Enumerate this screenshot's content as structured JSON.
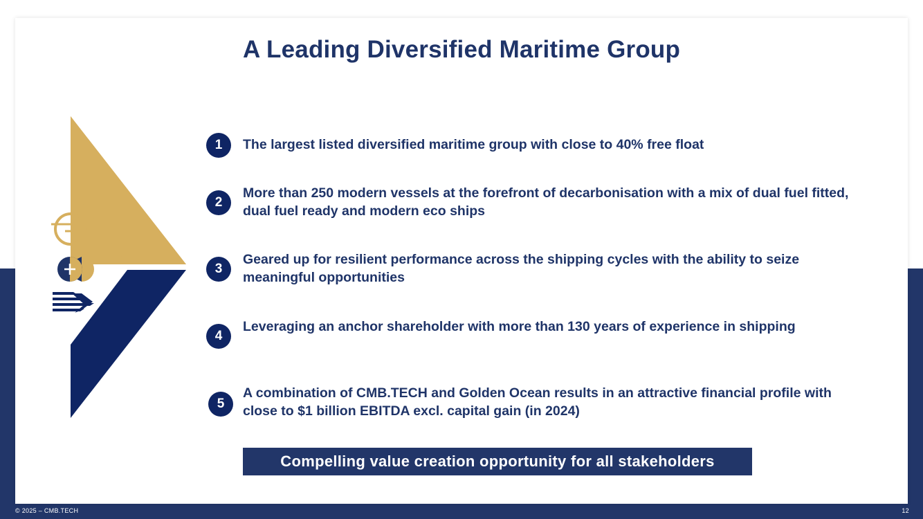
{
  "title": "A Leading Diversified Maritime Group",
  "items": [
    {
      "num": "1",
      "text": "The largest listed diversified maritime group with close to 40% free float"
    },
    {
      "num": "2",
      "text": "More than 250 modern vessels at the forefront of decarbonisation with a mix of dual fuel fitted, dual fuel ready and modern eco ships"
    },
    {
      "num": "3",
      "text": "Geared up for resilient performance across the shipping cycles with the ability to seize meaningful opportunities"
    },
    {
      "num": "4",
      "text": "Leveraging an anchor shareholder with more than 130 years of experience in shipping"
    },
    {
      "num": "5",
      "text": "A combination of CMB.TECH and Golden Ocean results in an attractive financial profile with close to $1 billion EBITDA excl. capital gain (in 2024)"
    }
  ],
  "callout": "Compelling value creation opportunity for all stakeholders",
  "footer": {
    "copyright": "© 2025 – CMB.TECH",
    "page_number": "12"
  },
  "colors": {
    "navy": "#0f2564",
    "band": "#223669",
    "gold": "#d6af5e",
    "title": "#1f3468"
  },
  "icons": [
    "golden-ocean-logo-icon",
    "plus-icon",
    "cmb-tech-logo-icon"
  ]
}
